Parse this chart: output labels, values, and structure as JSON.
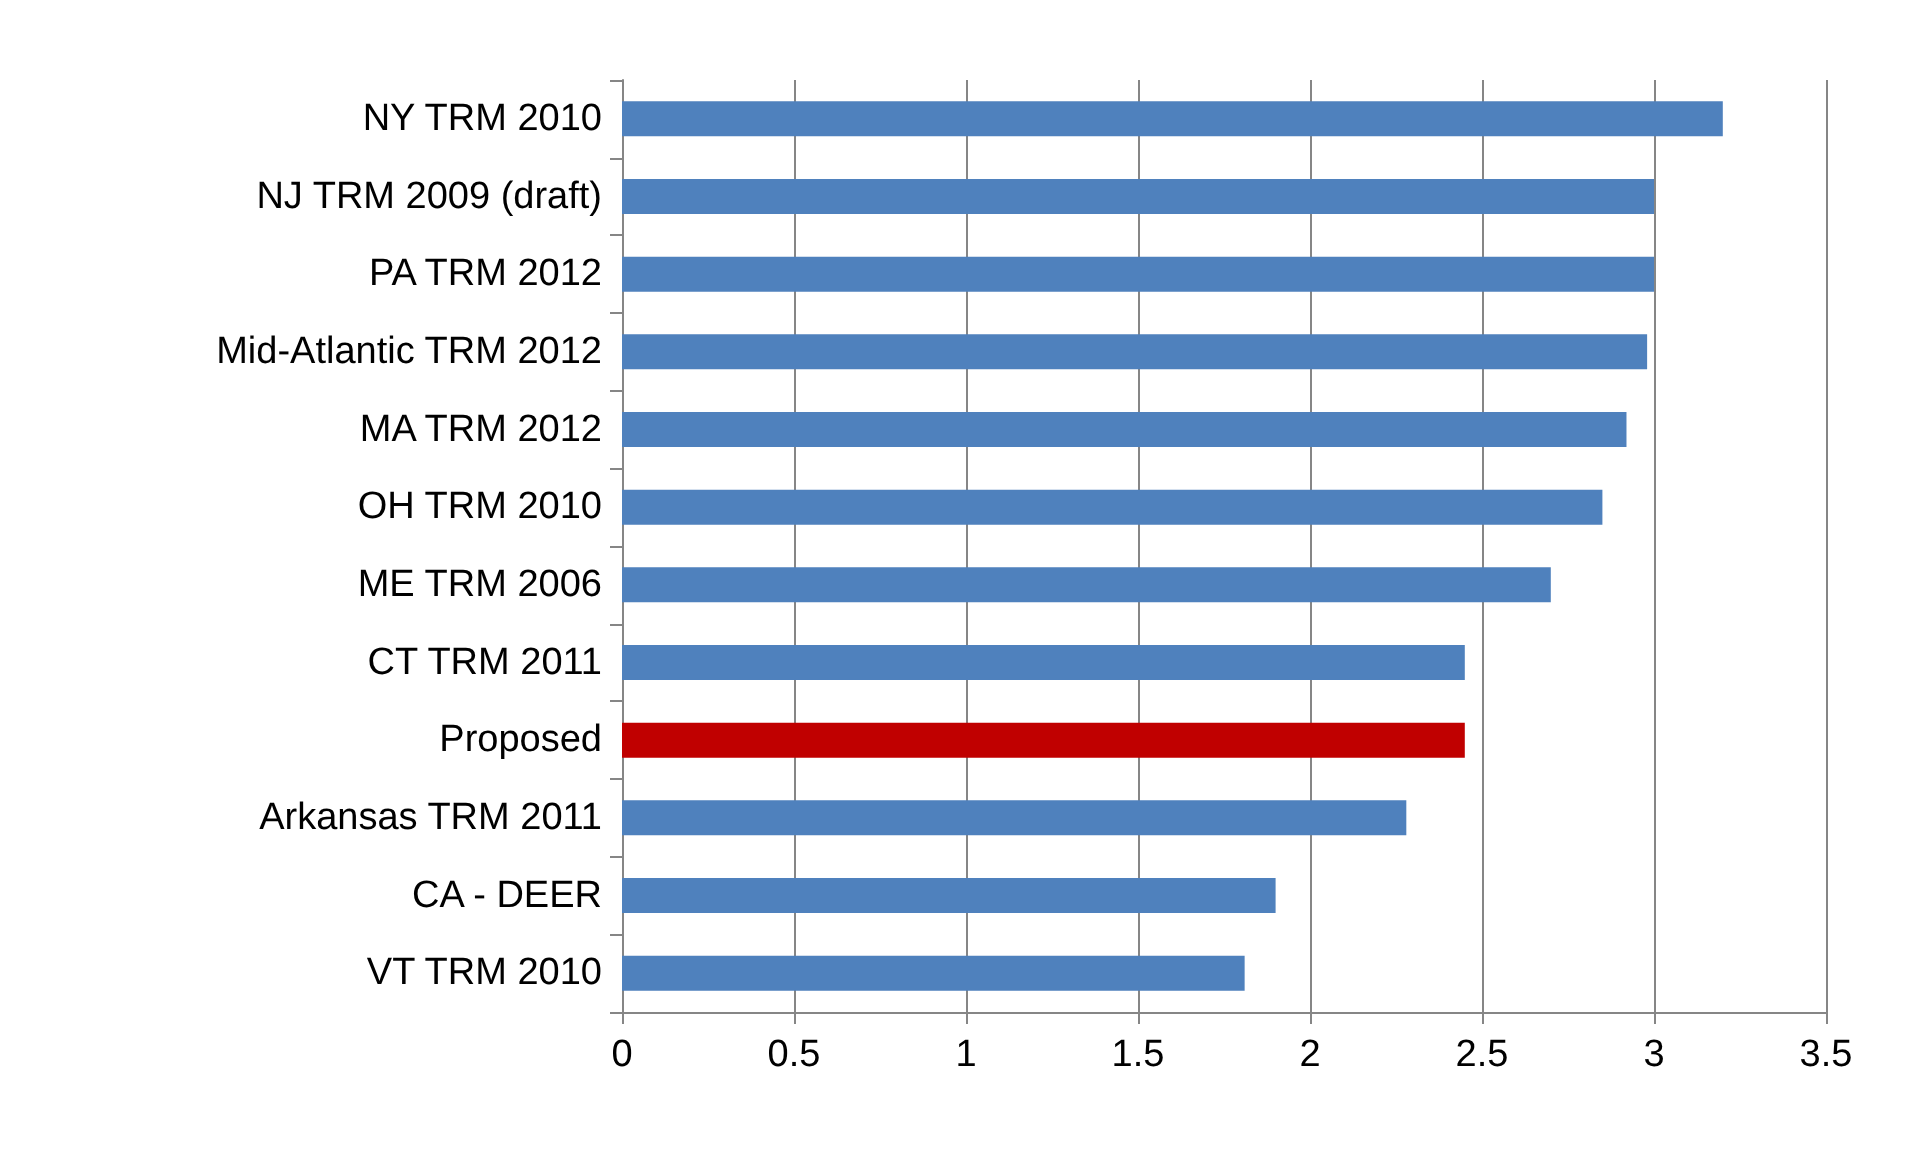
{
  "chart_data": {
    "type": "bar",
    "orientation": "horizontal",
    "categories": [
      "NY TRM 2010",
      "NJ TRM 2009 (draft)",
      "PA TRM 2012",
      "Mid-Atlantic TRM 2012",
      "MA TRM 2012",
      "OH TRM 2010",
      "ME TRM 2006",
      "CT TRM 2011",
      "Proposed",
      "Arkansas TRM 2011",
      "CA - DEER",
      "VT TRM 2010"
    ],
    "values": [
      3.2,
      3,
      3,
      2.98,
      2.92,
      2.85,
      2.7,
      2.45,
      2.45,
      2.28,
      1.9,
      1.81
    ],
    "colors": [
      "#4f81bd",
      "#4f81bd",
      "#4f81bd",
      "#4f81bd",
      "#4f81bd",
      "#4f81bd",
      "#4f81bd",
      "#4f81bd",
      "#c00000",
      "#4f81bd",
      "#4f81bd",
      "#4f81bd"
    ],
    "xlim": [
      0,
      3.5
    ],
    "xticks": [
      0,
      0.5,
      1,
      1.5,
      2,
      2.5,
      3,
      3.5
    ],
    "grid": "x"
  }
}
